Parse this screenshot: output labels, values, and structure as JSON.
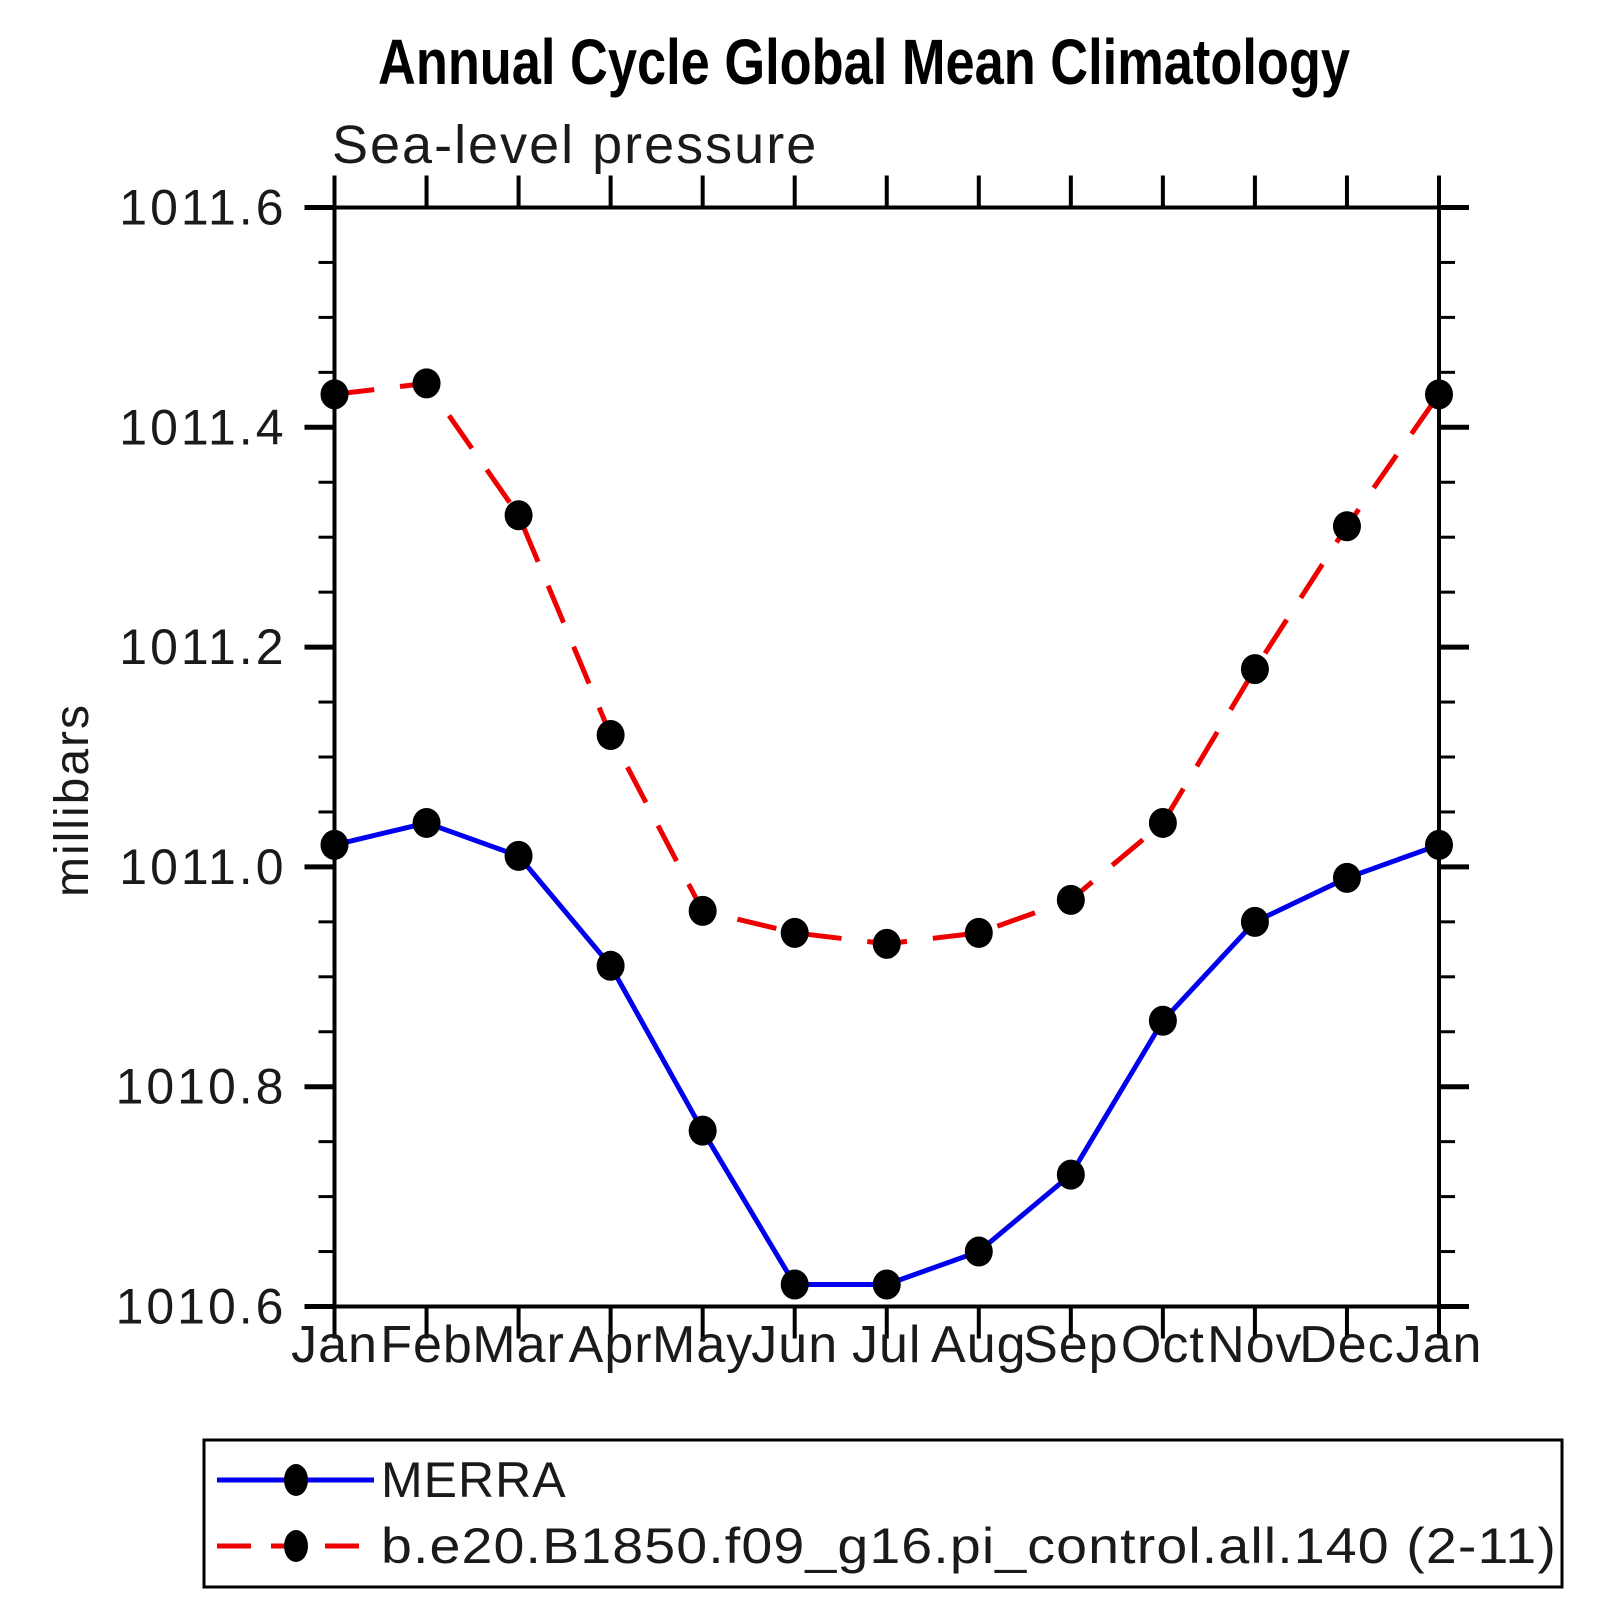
{
  "title": "Annual Cycle Global Mean Climatology",
  "subtitle": "Sea-level pressure",
  "ylabel": "millibars",
  "chart_data": {
    "type": "line",
    "categories": [
      "Jan",
      "Feb",
      "Mar",
      "Apr",
      "May",
      "Jun",
      "Jul",
      "Aug",
      "Sep",
      "Oct",
      "Nov",
      "Dec",
      "Jan"
    ],
    "xlabel": "",
    "ylabel": "millibars",
    "ylim": [
      1010.6,
      1011.6
    ],
    "ytick_interval": 0.2,
    "yminor_interval": 0.05,
    "ytick_labels": [
      "1011.6",
      "1011.4",
      "1011.2",
      "1011.0",
      "1010.8",
      "1010.6"
    ],
    "grid": false,
    "legend_position": "bottom-left",
    "marker_color": "#000000",
    "axis_color": "#000000",
    "series": [
      {
        "name": "MERRA",
        "color": "#0000EE",
        "style": "solid",
        "marker": "black-circle",
        "values": [
          1011.02,
          1011.04,
          1011.01,
          1010.91,
          1010.76,
          1010.62,
          1010.62,
          1010.65,
          1010.72,
          1010.86,
          1010.95,
          1010.99,
          1011.02
        ]
      },
      {
        "name": "b.e20.B1850.f09_g16.pi_control.all.140 (2-11)",
        "color": "#EE0000",
        "style": "dashed",
        "marker": "black-circle",
        "values": [
          1011.43,
          1011.44,
          1011.32,
          1011.12,
          1010.96,
          1010.94,
          1010.93,
          1010.94,
          1010.97,
          1011.04,
          1011.18,
          1011.31,
          1011.43
        ]
      }
    ]
  }
}
